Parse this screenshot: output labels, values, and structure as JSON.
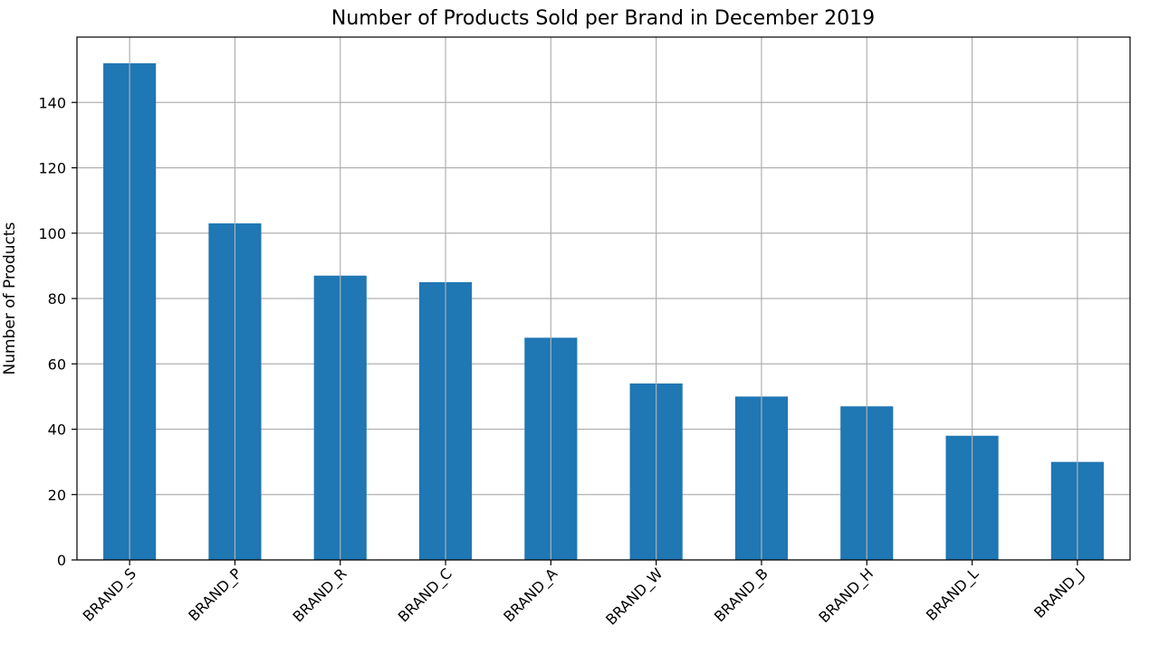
{
  "chart_data": {
    "type": "bar",
    "title": "Number of Products Sold per Brand in December 2019",
    "xlabel": "",
    "ylabel": "Number of Products",
    "categories": [
      "BRAND_S",
      "BRAND_P",
      "BRAND_R",
      "BRAND_C",
      "BRAND_A",
      "BRAND_W",
      "BRAND_B",
      "BRAND_H",
      "BRAND_L",
      "BRAND_J"
    ],
    "values": [
      152,
      103,
      87,
      85,
      68,
      54,
      50,
      47,
      38,
      30
    ],
    "ylim": [
      0,
      160
    ],
    "yticks": [
      0,
      20,
      40,
      60,
      80,
      100,
      120,
      140
    ],
    "grid": true,
    "bar_color": "#1f77b4"
  }
}
